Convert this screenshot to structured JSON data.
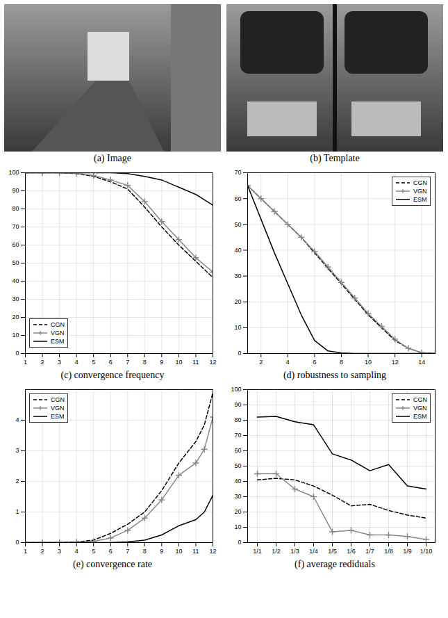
{
  "images": [
    {
      "caption": "(a) Image"
    },
    {
      "caption": "(b) Template"
    }
  ],
  "chart_data": [
    {
      "type": "line",
      "caption": "(c) convergence frequency",
      "x": [
        1,
        2,
        3,
        4,
        5,
        6,
        7,
        8,
        9,
        10,
        11,
        12
      ],
      "xlim": [
        1,
        12
      ],
      "xticks": [
        1,
        2,
        3,
        4,
        5,
        6,
        7,
        8,
        9,
        10,
        11,
        12
      ],
      "ylim": [
        0,
        100
      ],
      "yticks": [
        0,
        10,
        20,
        30,
        40,
        50,
        60,
        70,
        80,
        90,
        100
      ],
      "grid": true,
      "legend": "lower left",
      "series": [
        {
          "name": "CGN",
          "color": "#000000",
          "line_style": "dashed",
          "values": [
            100,
            100,
            100,
            99.5,
            98,
            95,
            91,
            81,
            70,
            60,
            51,
            42
          ]
        },
        {
          "name": "VGN",
          "color": "#888888",
          "line_style": "solid",
          "marker": "plus",
          "values": [
            100,
            100,
            100,
            99.7,
            98.5,
            96,
            93,
            84,
            73,
            63,
            53,
            45
          ]
        },
        {
          "name": "ESM",
          "color": "#000000",
          "line_style": "solid",
          "values": [
            100,
            100,
            100,
            100,
            100,
            100,
            99.5,
            98,
            96,
            92,
            88,
            82
          ]
        }
      ]
    },
    {
      "type": "line",
      "caption": "(d) robustness to sampling",
      "x": [
        1,
        2,
        3,
        4,
        5,
        6,
        7,
        8,
        9,
        10,
        11,
        12,
        13,
        14,
        15
      ],
      "xlim": [
        1,
        15
      ],
      "xticks": [
        2,
        4,
        6,
        8,
        10,
        12,
        14
      ],
      "ylim": [
        0,
        70
      ],
      "yticks": [
        0,
        10,
        20,
        30,
        40,
        50,
        60,
        70
      ],
      "grid": true,
      "legend": "upper right",
      "series": [
        {
          "name": "CGN",
          "color": "#000000",
          "line_style": "dashed",
          "values": [
            65,
            60,
            55,
            50,
            45,
            39,
            33,
            27,
            21,
            15,
            10,
            5,
            2,
            0.3,
            0
          ]
        },
        {
          "name": "VGN",
          "color": "#888888",
          "line_style": "solid",
          "marker": "plus",
          "values": [
            65,
            60,
            55,
            50,
            45,
            39.5,
            33.5,
            27.5,
            21.5,
            15.5,
            10.5,
            5.5,
            2,
            0.3,
            0
          ]
        },
        {
          "name": "ESM",
          "color": "#000000",
          "line_style": "solid",
          "values": [
            65,
            52,
            39,
            27,
            15,
            5,
            1,
            0.2,
            0,
            0,
            0,
            0,
            0,
            0,
            0
          ]
        }
      ]
    },
    {
      "type": "line",
      "caption": "(e) convergence rate",
      "x": [
        1,
        2,
        3,
        4,
        5,
        6,
        7,
        8,
        9,
        10,
        11,
        11.5,
        12
      ],
      "xlim": [
        1,
        12
      ],
      "xticks": [
        1,
        2,
        3,
        4,
        5,
        6,
        7,
        8,
        9,
        10,
        11,
        12
      ],
      "ylim": [
        0,
        5
      ],
      "yticks": [
        0,
        1,
        2,
        3,
        4
      ],
      "grid": true,
      "legend": "upper left",
      "series": [
        {
          "name": "CGN",
          "color": "#000000",
          "line_style": "dashed",
          "values": [
            0,
            0,
            0,
            0.02,
            0.08,
            0.3,
            0.6,
            1.0,
            1.7,
            2.6,
            3.3,
            3.85,
            4.9
          ]
        },
        {
          "name": "VGN",
          "color": "#888888",
          "line_style": "solid",
          "marker": "plus",
          "values": [
            0,
            0,
            0,
            0.01,
            0.04,
            0.15,
            0.4,
            0.8,
            1.4,
            2.2,
            2.6,
            3.05,
            4.1
          ]
        },
        {
          "name": "ESM",
          "color": "#000000",
          "line_style": "solid",
          "values": [
            0,
            0,
            0,
            0,
            0,
            0,
            0.02,
            0.08,
            0.25,
            0.55,
            0.75,
            1.0,
            1.55
          ]
        }
      ]
    },
    {
      "type": "line",
      "caption": "(f) average rediduals",
      "categories": [
        "1/1",
        "1/2",
        "1/3",
        "1/4",
        "1/5",
        "1/6",
        "1/7",
        "1/8",
        "1/9",
        "1/10"
      ],
      "ylim": [
        0,
        100
      ],
      "yticks": [
        0,
        10,
        20,
        30,
        40,
        50,
        60,
        70,
        80,
        90,
        100
      ],
      "grid": true,
      "legend": "upper right",
      "series": [
        {
          "name": "CGN",
          "color": "#000000",
          "line_style": "dashed",
          "values": [
            41,
            42,
            41,
            37,
            31,
            24,
            25,
            21,
            18,
            16
          ]
        },
        {
          "name": "VGN",
          "color": "#888888",
          "line_style": "solid",
          "marker": "plus",
          "values": [
            45,
            45,
            35,
            30,
            7,
            8,
            5,
            5,
            4,
            2
          ]
        },
        {
          "name": "ESM",
          "color": "#000000",
          "line_style": "solid",
          "values": [
            82,
            82.5,
            79,
            77,
            58,
            54,
            47,
            51,
            37,
            35
          ]
        }
      ]
    }
  ]
}
